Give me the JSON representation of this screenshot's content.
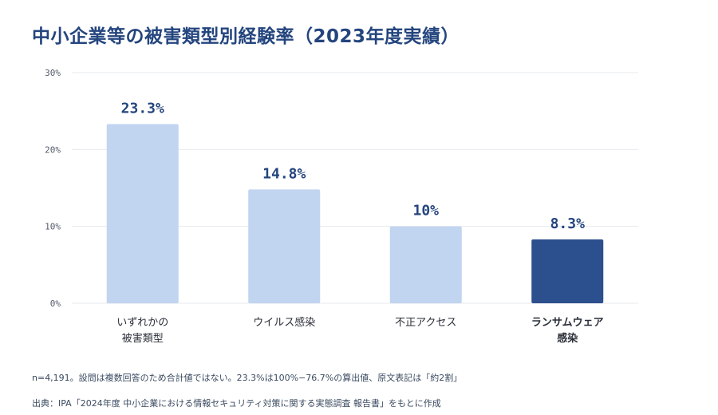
{
  "title": "中小企業等の被害類型別経験率（2023年度実績）",
  "chart_data": {
    "type": "bar",
    "categories": [
      [
        "いずれかの",
        "被害類型"
      ],
      [
        "ウイルス感染"
      ],
      [
        "不正アクセス"
      ],
      [
        "ランサムウェア",
        "感染"
      ]
    ],
    "values": [
      23.3,
      14.8,
      10,
      8.3
    ],
    "value_labels": [
      "23.3%",
      "14.8%",
      "10%",
      "8.3%"
    ],
    "highlight_index": 3,
    "ylim": [
      0,
      30
    ],
    "yticks": [
      0,
      10,
      20,
      30
    ],
    "ytick_labels": [
      "0%",
      "10%",
      "20%",
      "30%"
    ],
    "grid": true,
    "colors": {
      "bar": "#c1d4f0",
      "highlight": "#2c4f8e",
      "grid": "#e6e9ee",
      "label": "#24457e"
    }
  },
  "notes": {
    "sample": "n=4,191。設問は複数回答のため合計値ではない。23.3%は100%−76.7%の算出値、原文表記は「約2割」",
    "source": "出典：IPA「2024年度 中小企業における情報セキュリティ対策に関する実態調査 報告書」をもとに作成"
  }
}
